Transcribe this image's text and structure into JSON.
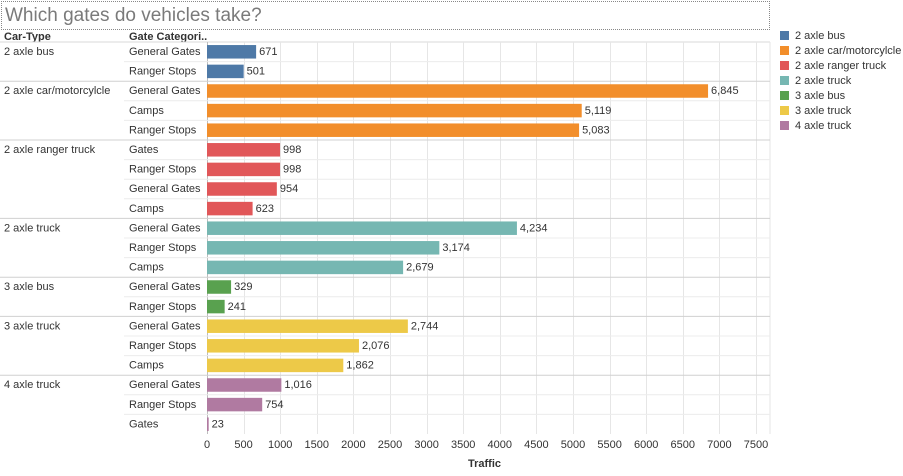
{
  "title": "Which gates do vehicles take?",
  "headers": {
    "car_type": "Car-Type",
    "gate_category": "Gate Categori.."
  },
  "legend": [
    {
      "label": "2 axle bus",
      "color": "#4e79a7"
    },
    {
      "label": "2 axle car/motorcylcle",
      "color": "#f28e2b"
    },
    {
      "label": "2 axle ranger truck",
      "color": "#e15759"
    },
    {
      "label": "2 axle truck",
      "color": "#76b7b2"
    },
    {
      "label": "3 axle bus",
      "color": "#59a14f"
    },
    {
      "label": "3 axle truck",
      "color": "#edc948"
    },
    {
      "label": "4 axle truck",
      "color": "#b07aa1"
    }
  ],
  "chart_data": {
    "type": "bar",
    "orientation": "horizontal",
    "title": "Which gates do vehicles take?",
    "xlabel": "Traffic",
    "xlim": [
      0,
      7500
    ],
    "xticks": [
      0,
      500,
      1000,
      1500,
      2000,
      2500,
      3000,
      3500,
      4000,
      4500,
      5000,
      5500,
      6000,
      6500,
      7000,
      7500
    ],
    "grid": true,
    "legend_position": "right",
    "groups": [
      {
        "name": "2 axle bus",
        "color": "#4e79a7",
        "rows": [
          {
            "category": "General Gates",
            "value": 671,
            "label": "671"
          },
          {
            "category": "Ranger Stops",
            "value": 501,
            "label": "501"
          }
        ]
      },
      {
        "name": "2 axle car/motorcylcle",
        "color": "#f28e2b",
        "rows": [
          {
            "category": "General Gates",
            "value": 6845,
            "label": "6,845"
          },
          {
            "category": "Camps",
            "value": 5119,
            "label": "5,119"
          },
          {
            "category": "Ranger Stops",
            "value": 5083,
            "label": "5,083"
          }
        ]
      },
      {
        "name": "2 axle ranger truck",
        "color": "#e15759",
        "rows": [
          {
            "category": "Gates",
            "value": 998,
            "label": "998"
          },
          {
            "category": "Ranger Stops",
            "value": 998,
            "label": "998"
          },
          {
            "category": "General Gates",
            "value": 954,
            "label": "954"
          },
          {
            "category": "Camps",
            "value": 623,
            "label": "623"
          }
        ]
      },
      {
        "name": "2 axle truck",
        "color": "#76b7b2",
        "rows": [
          {
            "category": "General Gates",
            "value": 4234,
            "label": "4,234"
          },
          {
            "category": "Ranger Stops",
            "value": 3174,
            "label": "3,174"
          },
          {
            "category": "Camps",
            "value": 2679,
            "label": "2,679"
          }
        ]
      },
      {
        "name": "3 axle bus",
        "color": "#59a14f",
        "rows": [
          {
            "category": "General Gates",
            "value": 329,
            "label": "329"
          },
          {
            "category": "Ranger Stops",
            "value": 241,
            "label": "241"
          }
        ]
      },
      {
        "name": "3 axle truck",
        "color": "#edc948",
        "rows": [
          {
            "category": "General Gates",
            "value": 2744,
            "label": "2,744"
          },
          {
            "category": "Ranger Stops",
            "value": 2076,
            "label": "2,076"
          },
          {
            "category": "Camps",
            "value": 1862,
            "label": "1,862"
          }
        ]
      },
      {
        "name": "4 axle truck",
        "color": "#b07aa1",
        "rows": [
          {
            "category": "General Gates",
            "value": 1016,
            "label": "1,016"
          },
          {
            "category": "Ranger Stops",
            "value": 754,
            "label": "754"
          },
          {
            "category": "Gates",
            "value": 23,
            "label": "23"
          }
        ]
      }
    ]
  }
}
